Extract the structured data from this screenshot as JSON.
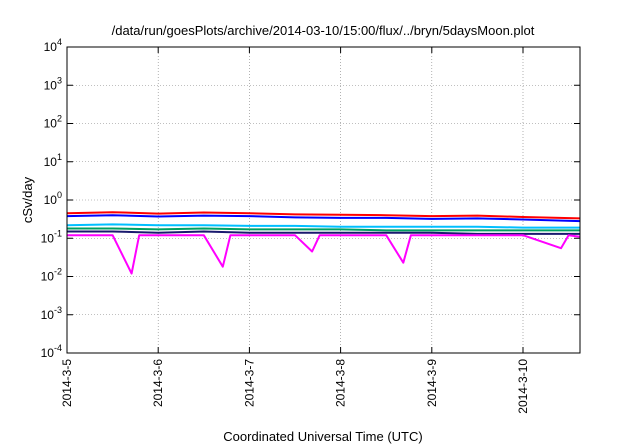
{
  "chart_data": {
    "type": "line",
    "title": "/data/run/goesPlots/archive/2014-03-10/15:00/flux/../bryn/5daysMoon.plot",
    "xlabel": "Coordinated Universal Time (UTC)",
    "ylabel": "cSv/day",
    "yscale": "log",
    "ylim": [
      0.0001,
      10000
    ],
    "yticks": [
      {
        "value": 0.0001,
        "base": "10",
        "exp": "-4"
      },
      {
        "value": 0.001,
        "base": "10",
        "exp": "-3"
      },
      {
        "value": 0.01,
        "base": "10",
        "exp": "-2"
      },
      {
        "value": 0.1,
        "base": "10",
        "exp": "-1"
      },
      {
        "value": 1,
        "base": "10",
        "exp": "0"
      },
      {
        "value": 10,
        "base": "10",
        "exp": "1"
      },
      {
        "value": 100,
        "base": "10",
        "exp": "2"
      },
      {
        "value": 1000,
        "base": "10",
        "exp": "3"
      },
      {
        "value": 10000,
        "base": "10",
        "exp": "4"
      }
    ],
    "xlim": [
      "2014-03-05",
      "2014-03-10T15:00"
    ],
    "xticks": [
      "2014-3-5",
      "2014-3-6",
      "2014-3-7",
      "2014-3-8",
      "2014-3-9",
      "2014-3-10"
    ],
    "grid": true,
    "legend": "none",
    "series": [
      {
        "color": "#ff0000",
        "x": [
          "2014-03-05",
          "2014-03-05T12:00",
          "2014-03-06",
          "2014-03-06T12:00",
          "2014-03-07",
          "2014-03-07T12:00",
          "2014-03-08",
          "2014-03-08T12:00",
          "2014-03-09",
          "2014-03-09T12:00",
          "2014-03-10",
          "2014-03-10T15:00"
        ],
        "values": [
          0.45,
          0.48,
          0.44,
          0.47,
          0.45,
          0.42,
          0.41,
          0.4,
          0.38,
          0.39,
          0.36,
          0.33
        ]
      },
      {
        "color": "#0000ff",
        "x": [
          "2014-03-05",
          "2014-03-05T12:00",
          "2014-03-06",
          "2014-03-06T12:00",
          "2014-03-07",
          "2014-03-07T12:00",
          "2014-03-08",
          "2014-03-08T12:00",
          "2014-03-09",
          "2014-03-09T12:00",
          "2014-03-10",
          "2014-03-10T15:00"
        ],
        "values": [
          0.38,
          0.4,
          0.37,
          0.39,
          0.38,
          0.35,
          0.34,
          0.34,
          0.32,
          0.33,
          0.31,
          0.28
        ]
      },
      {
        "color": "#00bfff",
        "x": [
          "2014-03-05",
          "2014-03-05T12:00",
          "2014-03-06",
          "2014-03-06T12:00",
          "2014-03-07",
          "2014-03-07T12:00",
          "2014-03-08",
          "2014-03-08T12:00",
          "2014-03-09",
          "2014-03-09T12:00",
          "2014-03-10",
          "2014-03-10T15:00"
        ],
        "values": [
          0.22,
          0.23,
          0.22,
          0.22,
          0.21,
          0.21,
          0.2,
          0.2,
          0.2,
          0.2,
          0.19,
          0.19
        ]
      },
      {
        "color": "#00a060",
        "x": [
          "2014-03-05",
          "2014-03-05T12:00",
          "2014-03-06",
          "2014-03-06T12:00",
          "2014-03-07",
          "2014-03-07T12:00",
          "2014-03-08",
          "2014-03-08T12:00",
          "2014-03-09",
          "2014-03-09T12:00",
          "2014-03-10",
          "2014-03-10T15:00"
        ],
        "values": [
          0.18,
          0.18,
          0.17,
          0.18,
          0.17,
          0.17,
          0.17,
          0.16,
          0.16,
          0.16,
          0.16,
          0.16
        ]
      },
      {
        "color": "#1a1a6e",
        "x": [
          "2014-03-05",
          "2014-03-05T12:00",
          "2014-03-06",
          "2014-03-06T12:00",
          "2014-03-07",
          "2014-03-07T12:00",
          "2014-03-08",
          "2014-03-08T12:00",
          "2014-03-09",
          "2014-03-09T12:00",
          "2014-03-10",
          "2014-03-10T15:00"
        ],
        "values": [
          0.15,
          0.15,
          0.14,
          0.15,
          0.14,
          0.14,
          0.14,
          0.14,
          0.14,
          0.13,
          0.13,
          0.13
        ]
      },
      {
        "color": "#ff00ff",
        "x": [
          "2014-03-05",
          "2014-03-05T12:00",
          "2014-03-05T17:00",
          "2014-03-05T19:00",
          "2014-03-06",
          "2014-03-06T12:00",
          "2014-03-06T17:00",
          "2014-03-06T19:00",
          "2014-03-07",
          "2014-03-07T12:00",
          "2014-03-07T16:30",
          "2014-03-07T18:30",
          "2014-03-08",
          "2014-03-08T12:00",
          "2014-03-08T16:30",
          "2014-03-08T18:30",
          "2014-03-09",
          "2014-03-09T12:00",
          "2014-03-10",
          "2014-03-10T10:00",
          "2014-03-10T12:00",
          "2014-03-10T15:00"
        ],
        "values": [
          0.12,
          0.12,
          0.012,
          0.12,
          0.12,
          0.12,
          0.018,
          0.12,
          0.12,
          0.12,
          0.045,
          0.12,
          0.12,
          0.12,
          0.023,
          0.12,
          0.12,
          0.12,
          0.12,
          0.055,
          0.12,
          0.11
        ]
      }
    ]
  }
}
